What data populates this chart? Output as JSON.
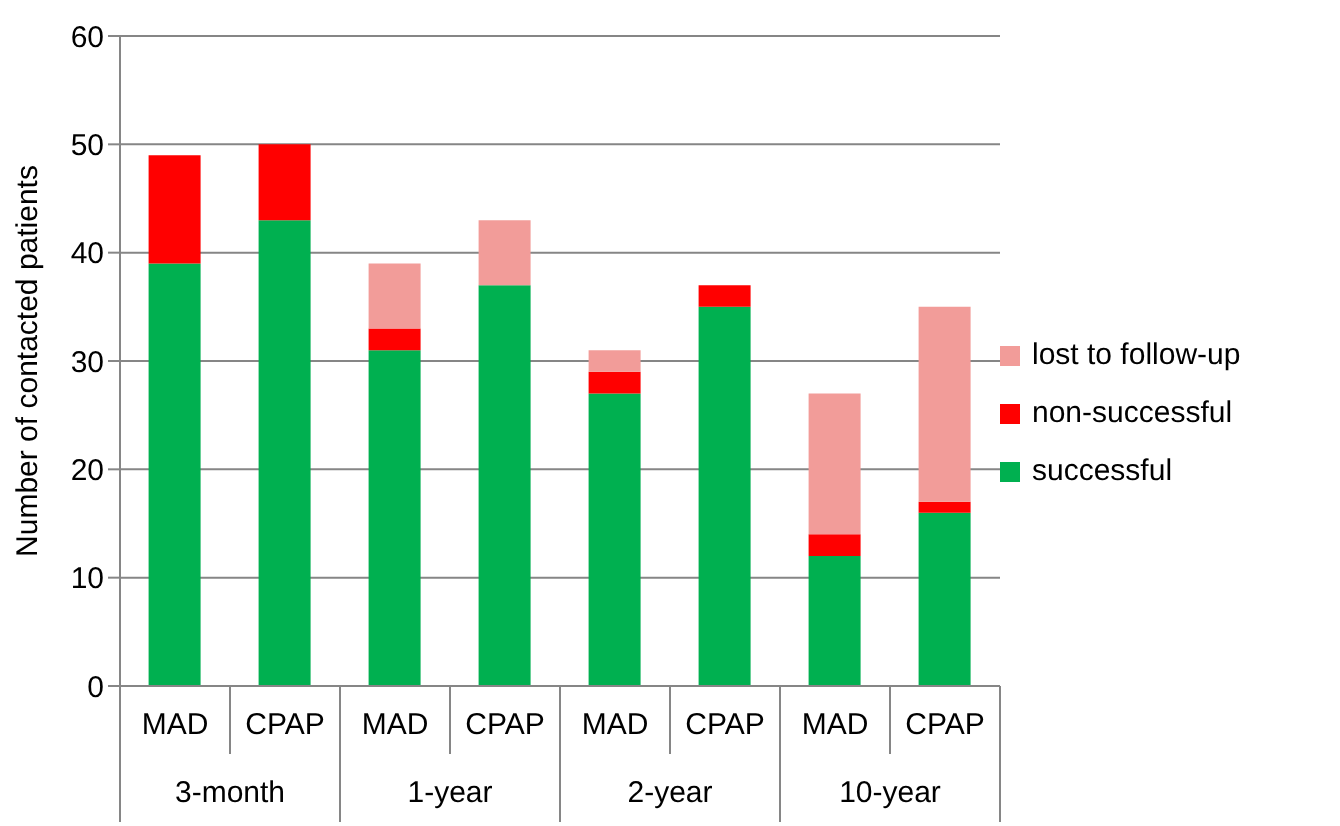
{
  "chart_data": {
    "type": "bar",
    "stacked": true,
    "ylabel": "Number of contacted patients",
    "categories": [
      "MAD",
      "CPAP",
      "MAD",
      "CPAP",
      "MAD",
      "CPAP",
      "MAD",
      "CPAP"
    ],
    "annotations": [
      "3-month",
      "1-year",
      "2-year",
      "10-year"
    ],
    "series": [
      {
        "name": "successful",
        "color": "#00b050",
        "values": [
          39,
          43,
          31,
          37,
          27,
          35,
          12,
          16
        ]
      },
      {
        "name": "non-successful",
        "color": "#ff0000",
        "values": [
          10,
          7,
          2,
          0,
          2,
          2,
          2,
          1
        ]
      },
      {
        "name": "lost to follow-up",
        "color": "#f29c99",
        "values": [
          0,
          0,
          6,
          6,
          2,
          0,
          13,
          18
        ]
      }
    ],
    "ylim": [
      0,
      60
    ],
    "yticks": [
      0,
      10,
      20,
      30,
      40,
      50,
      60
    ],
    "grid": "y",
    "legend": "right"
  }
}
